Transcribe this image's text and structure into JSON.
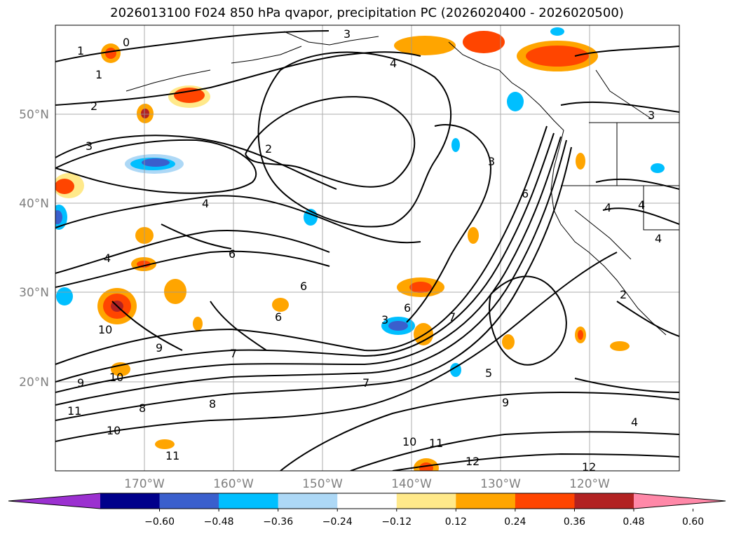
{
  "title": "2026013100 F024 850 hPa qvapor, precipitation PC (2026020400 - 2026020500)",
  "map": {
    "projection": "lat-lon",
    "lon_range": [
      -180,
      -110
    ],
    "lat_range": [
      10,
      60
    ],
    "lat_ticks": [
      "50°N",
      "40°N",
      "30°N",
      "20°N"
    ],
    "lon_ticks": [
      "170°W",
      "160°W",
      "150°W",
      "140°W",
      "130°W",
      "120°W"
    ],
    "gridlines": true,
    "contour_color": "#000000",
    "contour_labels": [
      "1",
      "0",
      "1",
      "2",
      "3",
      "4",
      "2",
      "3",
      "4",
      "6",
      "6",
      "4",
      "6",
      "7",
      "9",
      "10",
      "8",
      "9",
      "10",
      "11",
      "10",
      "11",
      "12",
      "3",
      "6",
      "7",
      "8",
      "9",
      "10",
      "11",
      "12",
      "4",
      "4",
      "2",
      "3",
      "4",
      "3",
      "6",
      "5",
      "7",
      "4"
    ]
  },
  "colorbar": {
    "ticks": [
      "−0.60",
      "−0.48",
      "−0.36",
      "−0.24",
      "−0.12",
      "0.12",
      "0.24",
      "0.36",
      "0.48",
      "0.60"
    ],
    "colors": [
      "#9b30d0",
      "#00008b",
      "#3a5fcd",
      "#00bfff",
      "#add8f6",
      "#ffffff",
      "#ffe98a",
      "#ffa500",
      "#ff4500",
      "#b22222",
      "#ff88a8"
    ],
    "extend": "both"
  }
}
